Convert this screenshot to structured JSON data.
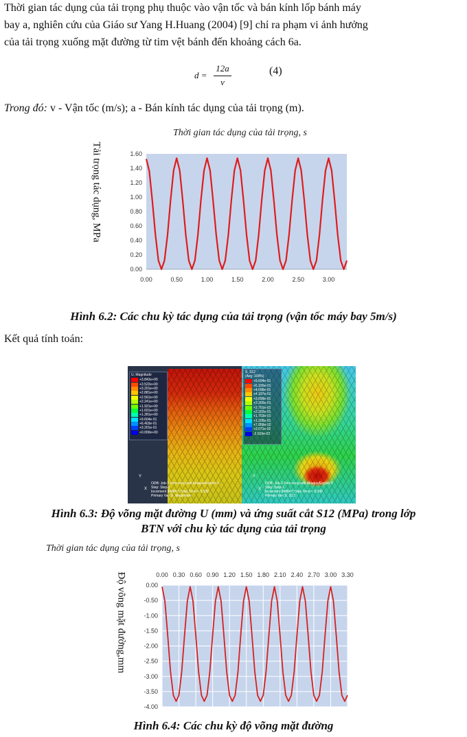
{
  "text": {
    "p1_line1": "Thời gian tác dụng của tải trọng phụ thuộc vào vận tốc và bán kính lốp bánh máy",
    "p1_line2": "bay a, nghiên cứu của Giáo sư Yang H.Huang (2004) [9] chỉ ra phạm vi ảnh hưởng",
    "p1_line3": "của tải trọng xuống mặt đường từ tim vệt bánh đến khoảng cách 6a.",
    "formula_lhs": "d =",
    "formula_num": "12a",
    "formula_den": "v",
    "formula_number": "(4)",
    "where_prefix": "Trong đó:",
    "where_text": " v - Vận tốc (m/s); a - Bán kính tác dụng của tải trọng (m).",
    "results_label": "Kết quả tính toán:"
  },
  "figure1": {
    "caption": "Hình 6.2: Các chu kỳ tác dụng của tải trọng (vận tốc máy bay 5m/s)"
  },
  "figure2": {
    "caption_line1": "Hình 6.3: Độ võng mặt đường U (mm) và ứng suất cắt S12 (MPa) trong lớp",
    "caption_line2": "BTN  với chu kỳ tác dụng của tải trọng",
    "left_panel": {
      "legend_title": "U, Magnitude",
      "legend_values": [
        "+3.842e+00",
        "+3.522e+00",
        "+3.201e+00",
        "+2.881e+00",
        "+2.561e+00",
        "+2.241e+00",
        "+1.921e+00",
        "+1.601e+00",
        "+1.281e+00",
        "+9.604e-01",
        "+6.403e-01",
        "+3.201e-01",
        "+0.000e+00"
      ],
      "legend_colors": [
        "#ff0000",
        "#ff4a00",
        "#ff8c00",
        "#ffc400",
        "#f0ff00",
        "#b4ff00",
        "#6cff00",
        "#00ff40",
        "#00ffb0",
        "#00e0ff",
        "#0090ff",
        "#0040ff",
        "#0000e0"
      ],
      "footer": [
        "ODB: Job-1-5ms-vong.odb    Abaqus/Explicit 6.",
        "Step: Step-1",
        "Increment    348647: Step Time =    3.300",
        "Primary Var: U, Magnitude"
      ]
    },
    "right_panel": {
      "legend_title": "S, S12",
      "legend_subtitle": "(Avg: 100%)",
      "legend_values": [
        "+5.694e-01",
        "+5.195e-01",
        "+4.696e-01",
        "+4.197e-01",
        "+3.699e-01",
        "+3.200e-01",
        "+2.701e-01",
        "+2.202e-01",
        "+1.703e-01",
        "+1.205e-01",
        "+7.058e-02",
        "+2.071e-02",
        "-2.919e-02"
      ],
      "legend_colors": [
        "#ff0000",
        "#ff4a00",
        "#ff8c00",
        "#ffc400",
        "#f0ff00",
        "#b4ff00",
        "#6cff00",
        "#00ff40",
        "#00ffb0",
        "#00e0ff",
        "#0090ff",
        "#0040ff",
        "#0000e0"
      ],
      "footer": [
        "ODB: Job-1-5ms-vong.odb    Abaqus/Explicit 6",
        "Step: Step-1",
        "Increment    348647: Step Time =    3.300",
        "Primary Var: S, S12"
      ]
    },
    "axis_label_y": "Y",
    "axis_label_x": "X"
  },
  "figure3": {
    "caption": "Hình 6.4: Các chu kỳ độ võng mặt đường"
  },
  "chart_data": [
    {
      "type": "line",
      "title": "Thời gian tác dụng của tải trọng, s",
      "ylabel": "Tải trọng tác dụng, MPa",
      "xlabel": "",
      "xlim": [
        0,
        3.3
      ],
      "ylim": [
        0,
        1.6
      ],
      "x_ticks": [
        "0.00",
        "0.50",
        "1.00",
        "1.50",
        "2.00",
        "2.50",
        "3.00"
      ],
      "y_ticks": [
        "0.00",
        "0.20",
        "0.40",
        "0.60",
        "0.80",
        "1.00",
        "1.20",
        "1.40",
        "1.60"
      ],
      "series": [
        {
          "color": "#e01b1b",
          "x": [
            0.0,
            0.05,
            0.1,
            0.15,
            0.2,
            0.25,
            0.3,
            0.35,
            0.4,
            0.45,
            0.5,
            0.55,
            0.6,
            0.65,
            0.7,
            0.75,
            0.8,
            0.85,
            0.9,
            0.95,
            1.0,
            1.05,
            1.1,
            1.15,
            1.2,
            1.25,
            1.3,
            1.35,
            1.4,
            1.45,
            1.5,
            1.55,
            1.6,
            1.65,
            1.7,
            1.75,
            1.8,
            1.85,
            1.9,
            1.95,
            2.0,
            2.05,
            2.1,
            2.15,
            2.2,
            2.25,
            2.3,
            2.35,
            2.4,
            2.45,
            2.5,
            2.55,
            2.6,
            2.65,
            2.7,
            2.75,
            2.8,
            2.85,
            2.9,
            2.95,
            3.0,
            3.05,
            3.1,
            3.15,
            3.2,
            3.25,
            3.3
          ],
          "values": [
            1.53,
            1.36,
            0.95,
            0.48,
            0.12,
            0.0,
            0.12,
            0.48,
            0.96,
            1.37,
            1.54,
            1.37,
            0.95,
            0.48,
            0.12,
            0.0,
            0.12,
            0.48,
            0.96,
            1.37,
            1.54,
            1.37,
            0.95,
            0.48,
            0.12,
            0.0,
            0.12,
            0.48,
            0.96,
            1.37,
            1.54,
            1.37,
            0.95,
            0.48,
            0.12,
            0.0,
            0.12,
            0.48,
            0.96,
            1.37,
            1.54,
            1.37,
            0.95,
            0.48,
            0.12,
            0.0,
            0.12,
            0.48,
            0.96,
            1.37,
            1.54,
            1.37,
            0.95,
            0.48,
            0.12,
            0.0,
            0.12,
            0.48,
            0.96,
            1.37,
            1.54,
            1.37,
            0.95,
            0.48,
            0.12,
            0.0,
            0.12
          ]
        }
      ],
      "grid": false,
      "background": "#c6d5ec"
    },
    {
      "type": "line",
      "title": "Thời gian tác dụng của tải trọng, s",
      "ylabel": "Độ võng mặt đường,mm",
      "xlabel": "",
      "xlim": [
        0,
        3.3
      ],
      "ylim": [
        -4.0,
        0.0
      ],
      "x_axis_position": "top",
      "x_ticks": [
        "0.00",
        "0.30",
        "0.60",
        "0.90",
        "1.20",
        "1.50",
        "1.80",
        "2.10",
        "2.40",
        "2.70",
        "3.00",
        "3.30"
      ],
      "y_ticks": [
        "0.00",
        "-0.50",
        "-1.00",
        "-1.50",
        "-2.00",
        "-2.50",
        "-3.00",
        "-3.50",
        "-4.00"
      ],
      "series": [
        {
          "color": "#d42020",
          "x": [
            0.0,
            0.05,
            0.1,
            0.15,
            0.2,
            0.25,
            0.3,
            0.35,
            0.4,
            0.45,
            0.5,
            0.55,
            0.6,
            0.65,
            0.7,
            0.75,
            0.8,
            0.85,
            0.9,
            0.95,
            1.0,
            1.05,
            1.1,
            1.15,
            1.2,
            1.25,
            1.3,
            1.35,
            1.4,
            1.45,
            1.5,
            1.55,
            1.6,
            1.65,
            1.7,
            1.75,
            1.8,
            1.85,
            1.9,
            1.95,
            2.0,
            2.05,
            2.1,
            2.15,
            2.2,
            2.25,
            2.3,
            2.35,
            2.4,
            2.45,
            2.5,
            2.55,
            2.6,
            2.65,
            2.7,
            2.75,
            2.8,
            2.85,
            2.9,
            2.95,
            3.0,
            3.05,
            3.1,
            3.15,
            3.2,
            3.25,
            3.3
          ],
          "values": [
            -0.05,
            -0.52,
            -1.65,
            -2.85,
            -3.62,
            -3.82,
            -3.62,
            -2.85,
            -1.65,
            -0.52,
            -0.05,
            -0.52,
            -1.65,
            -2.85,
            -3.62,
            -3.82,
            -3.62,
            -2.85,
            -1.65,
            -0.52,
            -0.05,
            -0.52,
            -1.65,
            -2.85,
            -3.62,
            -3.82,
            -3.62,
            -2.85,
            -1.65,
            -0.52,
            -0.05,
            -0.52,
            -1.65,
            -2.85,
            -3.62,
            -3.82,
            -3.62,
            -2.85,
            -1.65,
            -0.52,
            -0.05,
            -0.52,
            -1.65,
            -2.85,
            -3.62,
            -3.82,
            -3.62,
            -2.85,
            -1.65,
            -0.52,
            -0.05,
            -0.52,
            -1.65,
            -2.85,
            -3.62,
            -3.82,
            -3.62,
            -2.85,
            -1.65,
            -0.52,
            -0.05,
            -0.52,
            -1.65,
            -2.85,
            -3.62,
            -3.82,
            -3.62
          ]
        }
      ],
      "grid": true,
      "background": "#c6d5ec"
    }
  ]
}
